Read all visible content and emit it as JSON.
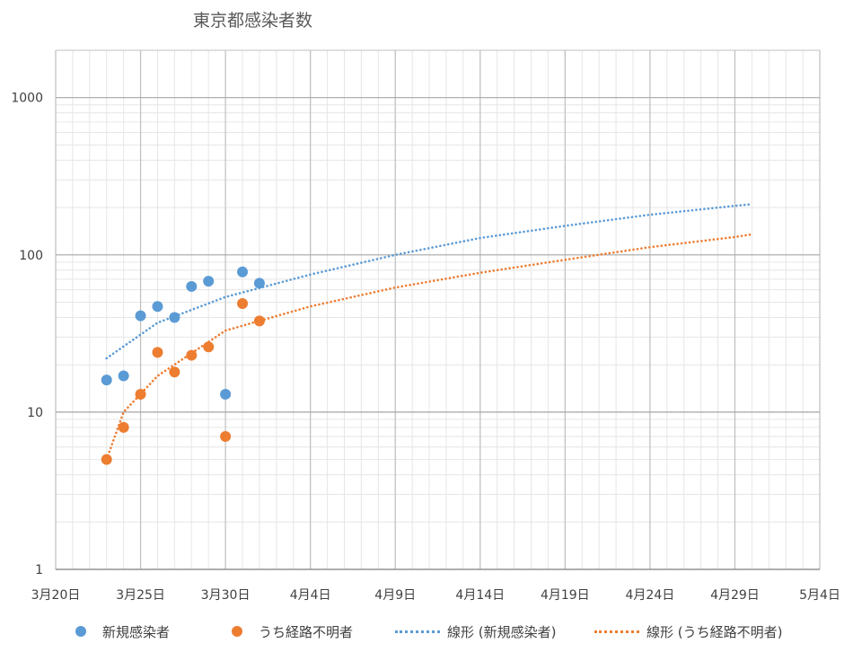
{
  "chart_data": {
    "type": "scatter",
    "title": "東京都感染者数",
    "xlabel": "",
    "ylabel": "",
    "yscale": "log",
    "ylim": [
      1,
      2000
    ],
    "xlim": [
      "2020-03-20",
      "2020-05-04"
    ],
    "grid": true,
    "legend_position": "bottom",
    "y_ticks": [
      "1",
      "10",
      "100",
      "1000"
    ],
    "x_ticks": [
      {
        "date": "2020-03-20",
        "label": "3月20日"
      },
      {
        "date": "2020-03-25",
        "label": "3月25日"
      },
      {
        "date": "2020-03-30",
        "label": "3月30日"
      },
      {
        "date": "2020-04-04",
        "label": "4月4日"
      },
      {
        "date": "2020-04-09",
        "label": "4月9日"
      },
      {
        "date": "2020-04-14",
        "label": "4月14日"
      },
      {
        "date": "2020-04-19",
        "label": "4月19日"
      },
      {
        "date": "2020-04-24",
        "label": "4月24日"
      },
      {
        "date": "2020-04-29",
        "label": "4月29日"
      },
      {
        "date": "2020-05-04",
        "label": "5月4日"
      }
    ],
    "series": [
      {
        "name": "新規感染者",
        "color": "#5b9bd5",
        "points": [
          {
            "x": "2020-03-23",
            "y": 16
          },
          {
            "x": "2020-03-24",
            "y": 17
          },
          {
            "x": "2020-03-25",
            "y": 41
          },
          {
            "x": "2020-03-26",
            "y": 47
          },
          {
            "x": "2020-03-27",
            "y": 40
          },
          {
            "x": "2020-03-28",
            "y": 63
          },
          {
            "x": "2020-03-29",
            "y": 68
          },
          {
            "x": "2020-03-30",
            "y": 13
          },
          {
            "x": "2020-03-31",
            "y": 78
          },
          {
            "x": "2020-04-01",
            "y": 66
          }
        ]
      },
      {
        "name": "うち経路不明者",
        "color": "#ed7d31",
        "points": [
          {
            "x": "2020-03-23",
            "y": 5
          },
          {
            "x": "2020-03-24",
            "y": 8
          },
          {
            "x": "2020-03-25",
            "y": 13
          },
          {
            "x": "2020-03-26",
            "y": 24
          },
          {
            "x": "2020-03-27",
            "y": 18
          },
          {
            "x": "2020-03-28",
            "y": 23
          },
          {
            "x": "2020-03-29",
            "y": 26
          },
          {
            "x": "2020-03-30",
            "y": 7
          },
          {
            "x": "2020-03-31",
            "y": 49
          },
          {
            "x": "2020-04-01",
            "y": 38
          }
        ]
      }
    ],
    "trendlines": [
      {
        "name": "線形 (新規感染者)",
        "color": "#5b9bd5",
        "style": "dotted",
        "points": [
          {
            "x": "2020-03-23",
            "y": 22
          },
          {
            "x": "2020-03-26",
            "y": 37
          },
          {
            "x": "2020-03-30",
            "y": 54
          },
          {
            "x": "2020-04-04",
            "y": 75
          },
          {
            "x": "2020-04-09",
            "y": 100
          },
          {
            "x": "2020-04-14",
            "y": 128
          },
          {
            "x": "2020-04-19",
            "y": 153
          },
          {
            "x": "2020-04-24",
            "y": 180
          },
          {
            "x": "2020-04-29",
            "y": 205
          },
          {
            "x": "2020-04-30",
            "y": 210
          }
        ]
      },
      {
        "name": "線形 (うち経路不明者)",
        "color": "#ed7d31",
        "style": "dotted",
        "points": [
          {
            "x": "2020-03-23",
            "y": 5
          },
          {
            "x": "2020-03-24",
            "y": 10
          },
          {
            "x": "2020-03-26",
            "y": 17
          },
          {
            "x": "2020-03-30",
            "y": 33
          },
          {
            "x": "2020-04-04",
            "y": 47
          },
          {
            "x": "2020-04-09",
            "y": 62
          },
          {
            "x": "2020-04-14",
            "y": 77
          },
          {
            "x": "2020-04-19",
            "y": 93
          },
          {
            "x": "2020-04-24",
            "y": 112
          },
          {
            "x": "2020-04-29",
            "y": 130
          },
          {
            "x": "2020-04-30",
            "y": 135
          }
        ]
      }
    ]
  }
}
